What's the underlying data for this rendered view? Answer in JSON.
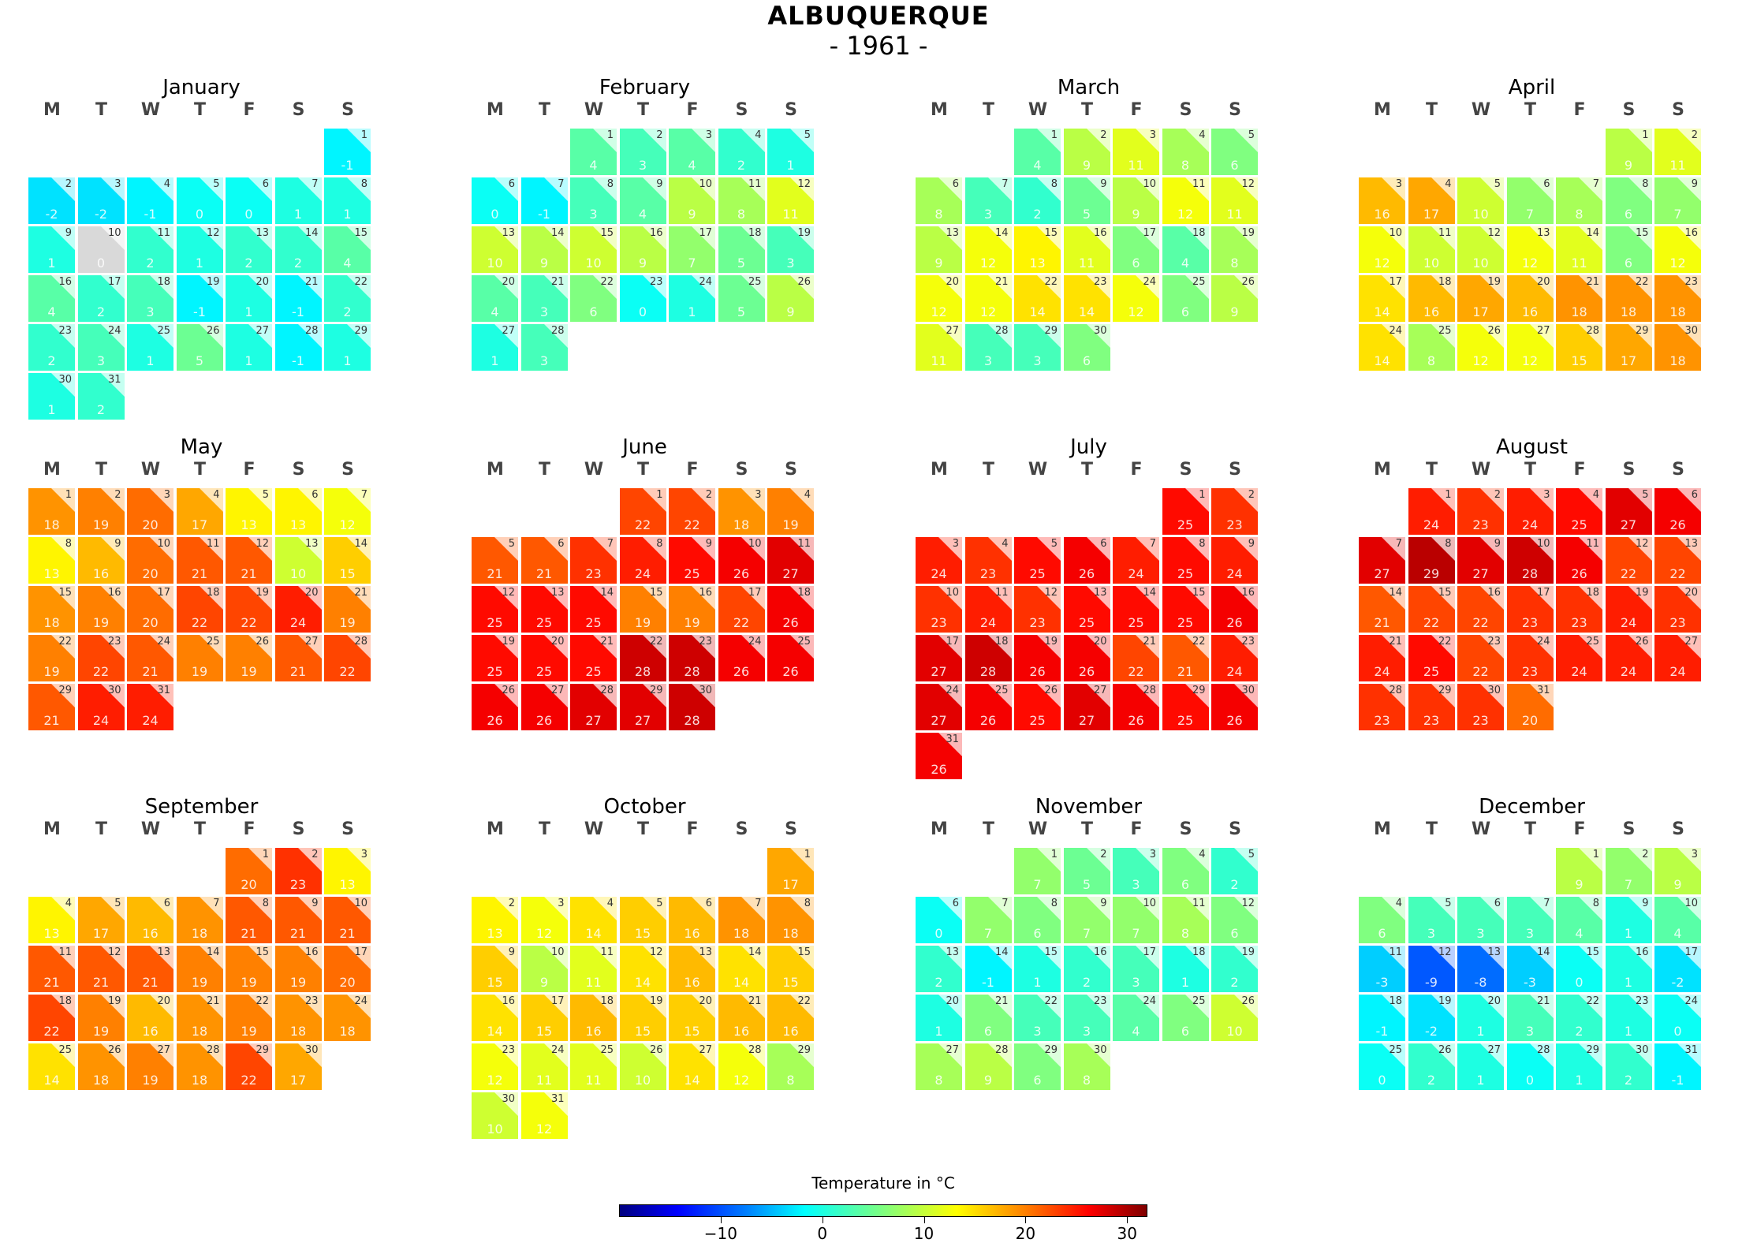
{
  "title": "ALBUQUERQUE",
  "subtitle": "- 1961 -",
  "weekdays": [
    "M",
    "T",
    "W",
    "T",
    "F",
    "S",
    "S"
  ],
  "months": [
    {
      "name": "January",
      "start": 6,
      "temps": [
        -1,
        -2,
        -2,
        -1,
        0,
        0,
        1,
        1,
        1,
        0,
        2,
        1,
        2,
        2,
        4,
        4,
        2,
        3,
        -1,
        1,
        -1,
        2,
        2,
        3,
        1,
        5,
        1,
        -1,
        1,
        1,
        2
      ],
      "missing": [
        10
      ]
    },
    {
      "name": "February",
      "start": 2,
      "temps": [
        4,
        3,
        4,
        2,
        1,
        0,
        -1,
        3,
        4,
        9,
        8,
        11,
        10,
        9,
        10,
        9,
        7,
        5,
        3,
        4,
        3,
        6,
        0,
        1,
        5,
        9,
        1,
        3
      ],
      "missing": []
    },
    {
      "name": "March",
      "start": 2,
      "temps": [
        4,
        9,
        11,
        8,
        6,
        8,
        3,
        2,
        5,
        9,
        12,
        11,
        9,
        12,
        13,
        11,
        6,
        4,
        8,
        12,
        12,
        14,
        14,
        12,
        6,
        9,
        11,
        3,
        3,
        6
      ],
      "missing": []
    },
    {
      "name": "April",
      "start": 5,
      "temps": [
        9,
        11,
        16,
        17,
        10,
        7,
        8,
        6,
        7,
        12,
        10,
        10,
        12,
        11,
        6,
        12,
        14,
        16,
        17,
        16,
        18,
        18,
        18,
        14,
        8,
        12,
        12,
        15,
        17,
        18
      ],
      "missing": []
    },
    {
      "name": "May",
      "start": 0,
      "temps": [
        18,
        19,
        20,
        17,
        13,
        13,
        12,
        13,
        16,
        20,
        21,
        21,
        10,
        15,
        18,
        19,
        20,
        22,
        22,
        24,
        19,
        19,
        22,
        21,
        19,
        19,
        21,
        22,
        21,
        24,
        24
      ],
      "missing": []
    },
    {
      "name": "June",
      "start": 3,
      "temps": [
        22,
        22,
        18,
        19,
        21,
        21,
        23,
        24,
        25,
        26,
        27,
        25,
        25,
        25,
        19,
        19,
        22,
        26,
        25,
        25,
        25,
        28,
        28,
        26,
        26,
        26,
        26,
        27,
        27,
        28
      ],
      "missing": []
    },
    {
      "name": "July",
      "start": 5,
      "temps": [
        25,
        23,
        24,
        23,
        25,
        26,
        24,
        25,
        24,
        23,
        24,
        23,
        25,
        25,
        25,
        26,
        27,
        28,
        26,
        26,
        22,
        21,
        24,
        27,
        26,
        25,
        27,
        26,
        25,
        26,
        26
      ],
      "missing": []
    },
    {
      "name": "August",
      "start": 1,
      "temps": [
        24,
        23,
        24,
        25,
        27,
        26,
        27,
        29,
        27,
        28,
        26,
        22,
        22,
        21,
        22,
        22,
        23,
        23,
        24,
        23,
        24,
        25,
        22,
        23,
        24,
        24,
        24,
        23,
        23,
        23,
        20
      ],
      "missing": []
    },
    {
      "name": "September",
      "start": 4,
      "temps": [
        20,
        23,
        13,
        13,
        17,
        16,
        18,
        21,
        21,
        21,
        21,
        21,
        21,
        19,
        19,
        19,
        20,
        22,
        19,
        16,
        18,
        19,
        18,
        18,
        14,
        18,
        19,
        18,
        22,
        17
      ],
      "missing": []
    },
    {
      "name": "October",
      "start": 6,
      "temps": [
        17,
        13,
        12,
        14,
        15,
        16,
        18,
        18,
        15,
        9,
        11,
        14,
        16,
        14,
        15,
        14,
        15,
        16,
        15,
        15,
        16,
        16,
        12,
        11,
        11,
        10,
        14,
        12,
        8,
        10,
        12
      ],
      "missing": []
    },
    {
      "name": "November",
      "start": 2,
      "temps": [
        7,
        5,
        3,
        6,
        2,
        0,
        7,
        6,
        7,
        7,
        8,
        6,
        2,
        -1,
        1,
        2,
        3,
        1,
        2,
        1,
        6,
        3,
        3,
        4,
        6,
        10,
        8,
        9,
        6,
        8
      ],
      "missing": []
    },
    {
      "name": "December",
      "start": 4,
      "temps": [
        9,
        7,
        9,
        6,
        3,
        3,
        3,
        4,
        1,
        4,
        -3,
        -9,
        -8,
        -3,
        0,
        1,
        -2,
        -1,
        -2,
        1,
        3,
        2,
        1,
        0,
        0,
        2,
        1,
        0,
        1,
        2,
        -1
      ],
      "missing": []
    }
  ],
  "colorbar": {
    "label": "Temperature in °C",
    "vmin": -20,
    "vmax": 32,
    "ticks": [
      "−10",
      "0",
      "10",
      "20",
      "30"
    ],
    "tick_values": [
      -10,
      0,
      10,
      20,
      30
    ]
  },
  "chart_data": {
    "type": "heatmap",
    "title": "ALBUQUERQUE",
    "subtitle": "- 1961 -",
    "colorbar_label": "Temperature in °C",
    "colorbar_range": [
      -20,
      32
    ],
    "colormap": "jet",
    "missing_color": "#d9d9d9"
  }
}
